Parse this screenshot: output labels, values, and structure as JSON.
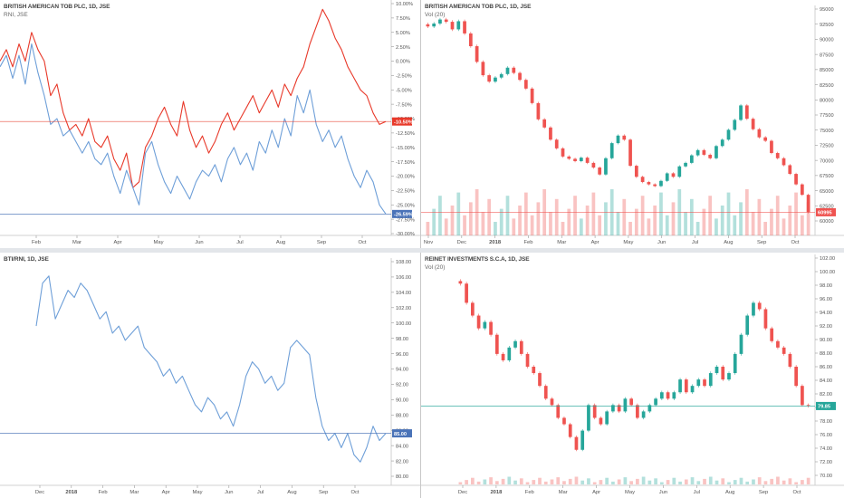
{
  "panels": [
    {
      "title": "BRITISH AMERICAN TOB PLC, 1D, JSE",
      "subtitle": "RNI, JSE"
    },
    {
      "title": "BRITISH AMERICAN TOB PLC, 1D, JSE",
      "subtitle": "Vol (20)"
    },
    {
      "title": "BTI/RNI, 1D, JSE",
      "subtitle": ""
    },
    {
      "title": "REINET INVESTMENTS S.C.A, 1D, JSE",
      "subtitle": "Vol (20)"
    }
  ],
  "chart_data": [
    {
      "type": "line",
      "title": "BRITISH AMERICAN TOB PLC, 1D, JSE",
      "subtitle": "RNI, JSE",
      "x_ticks": [
        "Feb",
        "Mar",
        "Apr",
        "May",
        "Jun",
        "Jul",
        "Aug",
        "Sep",
        "Oct"
      ],
      "y_ticks": [
        "10.00%",
        "7.50%",
        "5.00%",
        "2.50%",
        "0.00%",
        "-2.50%",
        "-5.00%",
        "-7.50%",
        "-10.00%",
        "-12.50%",
        "-15.00%",
        "-17.50%",
        "-20.00%",
        "-22.50%",
        "-25.00%",
        "-27.50%",
        "-30.00%"
      ],
      "ylim": [
        -30,
        10
      ],
      "series": [
        {
          "name": "BRITISH AMERICAN TOB PLC",
          "color": "#e8392a",
          "last_label": "-10.50%",
          "values": [
            0,
            2,
            -1,
            3,
            0,
            5,
            2,
            0,
            -6,
            -4,
            -9,
            -12,
            -11,
            -13,
            -10,
            -14,
            -15,
            -13,
            -17,
            -19,
            -16,
            -22,
            -21,
            -15,
            -13,
            -10,
            -8,
            -11,
            -13,
            -7,
            -12,
            -15,
            -13,
            -16,
            -14,
            -11,
            -9,
            -12,
            -10,
            -8,
            -6,
            -9,
            -7,
            -5,
            -8,
            -4,
            -6,
            -3,
            -1,
            3,
            6,
            9,
            7,
            4,
            2,
            -1,
            -3,
            -5,
            -6,
            -9,
            -11,
            -10.5
          ]
        },
        {
          "name": "RNI",
          "color": "#6e9fd8",
          "last_label": "-26.59%",
          "values": [
            -1,
            1,
            -3,
            1,
            -4,
            3,
            -2,
            -6,
            -11,
            -10,
            -13,
            -12,
            -14,
            -16,
            -14,
            -17,
            -18,
            -16,
            -20,
            -23,
            -19,
            -22,
            -25,
            -16,
            -14,
            -18,
            -21,
            -23,
            -20,
            -22,
            -24,
            -21,
            -19,
            -20,
            -18,
            -21,
            -17,
            -15,
            -18,
            -16,
            -19,
            -14,
            -16,
            -12,
            -15,
            -10,
            -13,
            -6,
            -9,
            -5,
            -11,
            -14,
            -12,
            -15,
            -13,
            -17,
            -20,
            -22,
            -19,
            -21,
            -25,
            -26.59
          ]
        }
      ]
    },
    {
      "type": "candlestick",
      "title": "BRITISH AMERICAN TOB PLC, 1D, JSE",
      "subtitle": "Vol (20)",
      "x_ticks": [
        "Nov",
        "Dec",
        "2018",
        "Feb",
        "Mar",
        "Apr",
        "May",
        "Jun",
        "Jul",
        "Aug",
        "Sep",
        "Oct"
      ],
      "y_ticks": [
        "95000",
        "92500",
        "90000",
        "87500",
        "85000",
        "82500",
        "80000",
        "77500",
        "75000",
        "72500",
        "70000",
        "67500",
        "65000",
        "62500",
        "60000"
      ],
      "ylim": [
        59500,
        96000
      ],
      "last_label": "60995",
      "series": [
        {
          "name": "close",
          "values": [
            93000,
            93500,
            94200,
            93800,
            92500,
            93900,
            91800,
            89600,
            86900,
            84600,
            83500,
            84200,
            84800,
            85900,
            85000,
            83800,
            82300,
            79800,
            77000,
            75600,
            73500,
            72000,
            70600,
            70200,
            69800,
            70400,
            69500,
            68700,
            67500,
            70300,
            72900,
            74200,
            73500,
            69000,
            67100,
            66200,
            65800,
            65500,
            66400,
            67700,
            67100,
            68900,
            69500,
            70800,
            71700,
            70900,
            70300,
            72400,
            73500,
            75200,
            76900,
            79400,
            77100,
            75300,
            73900,
            73300,
            71200,
            70300,
            69100,
            67600,
            65800,
            64000,
            60995
          ]
        }
      ]
    },
    {
      "type": "line",
      "title": "BTI/RNI, 1D, JSE",
      "x_ticks": [
        "Dec",
        "2018",
        "Feb",
        "Mar",
        "Apr",
        "May",
        "Jun",
        "Jul",
        "Aug",
        "Sep",
        "Oct"
      ],
      "y_ticks": [
        "108.00",
        "106.00",
        "104.00",
        "102.00",
        "100.00",
        "98.00",
        "96.00",
        "94.00",
        "92.00",
        "90.00",
        "88.00",
        "86.00",
        "84.00",
        "82.00",
        "80.00"
      ],
      "ylim": [
        79,
        109
      ],
      "last_label": "85.00",
      "series": [
        {
          "name": "BTI/RNI",
          "color": "#6e9fd8",
          "values": [
            100,
            106,
            107,
            101,
            103,
            105,
            104,
            106,
            105,
            103,
            101,
            102,
            99,
            100,
            98,
            99,
            100,
            97,
            96,
            95,
            93,
            94,
            92,
            93,
            91,
            89,
            88,
            90,
            89,
            87,
            88,
            86,
            89,
            93,
            95,
            94,
            92,
            93,
            91,
            92,
            97,
            98,
            97,
            96,
            90,
            86,
            84,
            85,
            83,
            85,
            82,
            81,
            83,
            86,
            84,
            85
          ]
        }
      ]
    },
    {
      "type": "candlestick",
      "title": "REINET INVESTMENTS S.C.A, 1D, JSE",
      "subtitle": "Vol (20)",
      "x_ticks": [
        "Dec",
        "2018",
        "Feb",
        "Mar",
        "Apr",
        "May",
        "Jun",
        "Jul",
        "Aug",
        "Sep",
        "Oct"
      ],
      "y_ticks": [
        "102.00",
        "100.00",
        "98.00",
        "96.00",
        "94.00",
        "92.00",
        "90.00",
        "88.00",
        "86.00",
        "84.00",
        "82.00",
        "80.00",
        "78.00",
        "76.00",
        "74.00",
        "72.00",
        "70.00"
      ],
      "ylim": [
        69,
        103
      ],
      "last_label": "79.85",
      "series": [
        {
          "name": "close",
          "values": [
            99,
            96,
            94,
            92,
            93,
            91,
            88,
            87,
            89,
            90,
            88,
            86,
            85,
            83,
            81,
            80,
            78,
            77,
            75,
            73,
            76,
            80,
            78,
            77,
            79,
            80,
            79,
            81,
            80,
            78,
            79,
            80,
            81,
            82,
            81,
            82,
            84,
            82,
            83,
            84,
            83,
            85,
            86,
            84,
            85,
            88,
            91,
            94,
            96,
            95,
            92,
            90,
            89,
            88,
            86,
            83,
            80,
            79.85
          ]
        }
      ]
    }
  ]
}
